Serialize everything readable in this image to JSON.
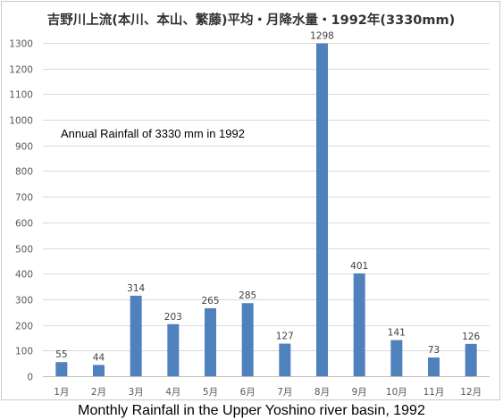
{
  "chart_data": {
    "type": "bar",
    "title": "吉野川上流(本川、本山、繁藤)平均・月降水量・1992年(3330mm)",
    "annotation": "Annual Rainfall of 3330 mm in 1992",
    "caption": "Monthly Rainfall in the Upper Yoshino river basin, 1992",
    "categories": [
      "1月",
      "2月",
      "3月",
      "4月",
      "5月",
      "6月",
      "7月",
      "8月",
      "9月",
      "10月",
      "11月",
      "12月"
    ],
    "values": [
      55,
      44,
      314,
      203,
      265,
      285,
      127,
      1298,
      401,
      141,
      73,
      126
    ],
    "ylim": [
      0,
      1300
    ],
    "yticks": [
      0,
      100,
      200,
      300,
      400,
      500,
      600,
      700,
      800,
      900,
      1000,
      1100,
      1200,
      1300
    ],
    "grid": true,
    "xlabel": "",
    "ylabel": "",
    "bar_color": "#4f81bd",
    "grid_color": "#d9d9d9"
  }
}
